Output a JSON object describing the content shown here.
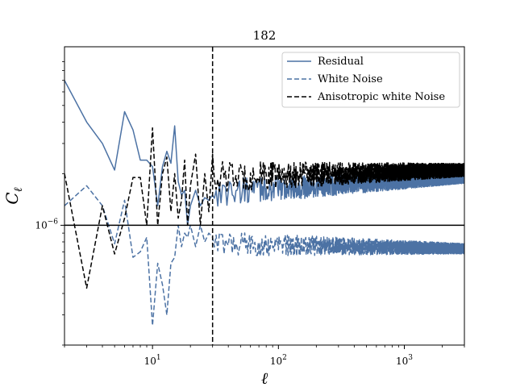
{
  "chart_data": {
    "type": "line",
    "title": "182",
    "xlabel": "ℓ",
    "ylabel": "C",
    "ylabel_sub": "ℓ",
    "xscale": "log",
    "yscale": "log",
    "xlim": [
      2,
      3000
    ],
    "ylim": [
      2e-07,
      1.1e-05
    ],
    "x_ticks": [
      {
        "value": 10,
        "base": "10",
        "exp": "1"
      },
      {
        "value": 100,
        "base": "10",
        "exp": "2"
      },
      {
        "value": 1000,
        "base": "10",
        "exp": "3"
      }
    ],
    "y_ticks": [
      {
        "value": 1e-06,
        "base": "10",
        "exp": "−6"
      }
    ],
    "legend_position": "top-right",
    "colors": {
      "residual": "#4c72a4",
      "white_noise": "#4c72a4",
      "aniso": "#000000",
      "hline": "#000000",
      "vline": "#000000"
    },
    "hline": 1e-06,
    "vline": 30,
    "series": [
      {
        "name": "Residual",
        "style": "solid",
        "color": "#4c72a4",
        "x": [
          2,
          3,
          4,
          5,
          6,
          7,
          8,
          9,
          10,
          11,
          12,
          13,
          14,
          15,
          16,
          17,
          18,
          19,
          20,
          22,
          24,
          26,
          28,
          30
        ],
        "y": [
          7e-06,
          4e-06,
          3e-06,
          2.1e-06,
          4.6e-06,
          3.6e-06,
          2.4e-06,
          2.4e-06,
          2.2e-06,
          1.3e-06,
          2.2e-06,
          2.7e-06,
          2.3e-06,
          3.8e-06,
          1.8e-06,
          1.5e-06,
          1.6e-06,
          1e-06,
          1.3e-06,
          1.6e-06,
          1.3e-06,
          1.45e-06,
          1.4e-06,
          1.5e-06
        ],
        "tail": {
          "x_start": 30,
          "x_end": 3000,
          "y_start": 1.55e-06,
          "y_end": 1.9e-06,
          "jitter": 0.085
        }
      },
      {
        "name": "White Noise",
        "style": "dashed",
        "color": "#4c72a4",
        "x": [
          2,
          3,
          4,
          5,
          6,
          7,
          8,
          9,
          10,
          11,
          12,
          13,
          14,
          15,
          16,
          17,
          18,
          19,
          20,
          22,
          24,
          26,
          28,
          30
        ],
        "y": [
          1.3e-06,
          1.7e-06,
          1.3e-06,
          7.8e-07,
          1.4e-06,
          6.5e-07,
          7e-07,
          8.5e-07,
          2.6e-07,
          6e-07,
          4.5e-07,
          3e-07,
          6e-07,
          6.5e-07,
          1e-06,
          7.5e-07,
          9e-07,
          8.5e-07,
          1e-06,
          7.5e-07,
          1e-06,
          8e-07,
          9e-07,
          8.5e-07
        ],
        "tail": {
          "x_start": 30,
          "x_end": 3000,
          "y_start": 7.8e-07,
          "y_end": 7.3e-07,
          "jitter": 0.075
        }
      },
      {
        "name": "Anisotropic white Noise",
        "style": "dashed",
        "color": "#000000",
        "x": [
          2,
          3,
          4,
          5,
          6,
          7,
          8,
          9,
          10,
          11,
          12,
          13,
          14,
          15,
          16,
          17,
          18,
          19,
          20,
          22,
          24,
          26,
          28,
          30
        ],
        "y": [
          2e-06,
          4.3e-07,
          1.3e-06,
          6.8e-07,
          1.1e-06,
          1.9e-06,
          1.9e-06,
          1e-06,
          3.7e-06,
          1e-06,
          2e-06,
          2.5e-06,
          1.2e-06,
          2e-06,
          1.1e-06,
          1.4e-06,
          2.4e-06,
          1e-06,
          1.7e-06,
          2.6e-06,
          1e-06,
          2e-06,
          1.2e-06,
          2.6e-06
        ],
        "tail": {
          "x_start": 30,
          "x_end": 3000,
          "y_start": 1.9e-06,
          "y_end": 2.1e-06,
          "jitter": 0.095
        }
      }
    ]
  }
}
